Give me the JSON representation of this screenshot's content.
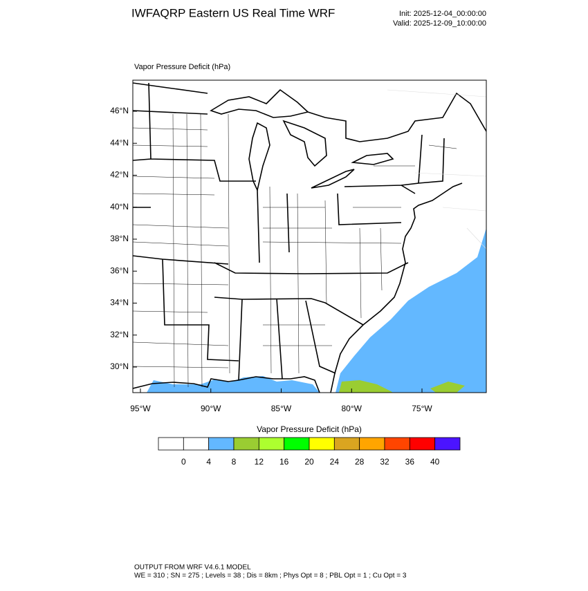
{
  "header": {
    "title": "IWFAQRP Eastern US Real Time WRF",
    "init": "Init: 2025-12-04_00:00:00",
    "valid": "Valid: 2025-12-09_10:00:00"
  },
  "map": {
    "label": "Vapor Pressure Deficit   (hPa)",
    "lat_ticks": [
      {
        "value": 46,
        "label": "46°N"
      },
      {
        "value": 44,
        "label": "44°N"
      },
      {
        "value": 42,
        "label": "42°N"
      },
      {
        "value": 40,
        "label": "40°N"
      },
      {
        "value": 38,
        "label": "38°N"
      },
      {
        "value": 36,
        "label": "36°N"
      },
      {
        "value": 34,
        "label": "34°N"
      },
      {
        "value": 32,
        "label": "32°N"
      },
      {
        "value": 30,
        "label": "30°N"
      }
    ],
    "lon_ticks": [
      {
        "value": -95,
        "label": "95°W"
      },
      {
        "value": -90,
        "label": "90°W"
      },
      {
        "value": -85,
        "label": "85°W"
      },
      {
        "value": -80,
        "label": "80°W"
      },
      {
        "value": -75,
        "label": "75°W"
      }
    ]
  },
  "colorbar": {
    "title": "Vapor Pressure Deficit  (hPa)",
    "colors": [
      "#ffffff",
      "#ffffff",
      "#63b8ff",
      "#9acd32",
      "#adff2f",
      "#00ff00",
      "#ffff00",
      "#daa520",
      "#ffa500",
      "#ff4500",
      "#ff0000",
      "#4b14ff"
    ],
    "ticks": [
      0,
      4,
      8,
      12,
      16,
      20,
      24,
      28,
      32,
      36,
      40
    ]
  },
  "footer": {
    "line1": "OUTPUT FROM WRF V4.6.1 MODEL",
    "line2": "WE = 310 ; SN = 275 ; Levels = 38 ; Dis = 8km ; Phys Opt = 8 ; PBL Opt = 1 ; Cu Opt = 3"
  }
}
